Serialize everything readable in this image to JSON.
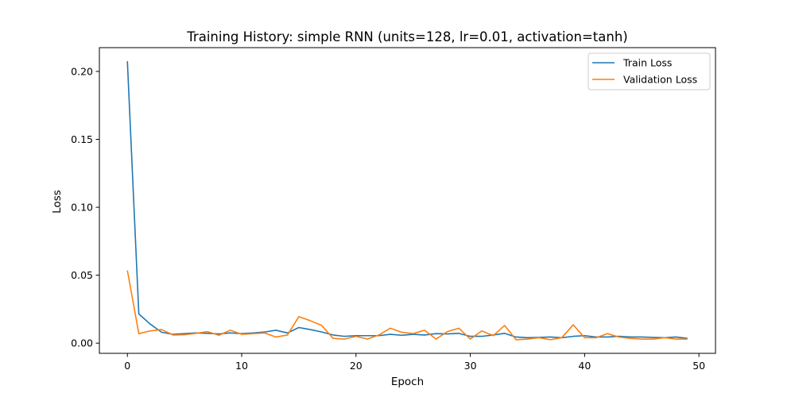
{
  "chart_data": {
    "type": "line",
    "title": "Training History: simple RNN (units=128, lr=0.01, activation=tanh)",
    "xlabel": "Epoch",
    "ylabel": "Loss",
    "xlim": [
      -2.45,
      51.45
    ],
    "ylim": [
      -0.0075,
      0.2175
    ],
    "xticks": [
      0,
      10,
      20,
      30,
      40,
      50
    ],
    "yticks": [
      0.0,
      0.05,
      0.1,
      0.15,
      0.2
    ],
    "xtick_labels": [
      "0",
      "10",
      "20",
      "30",
      "40",
      "50"
    ],
    "ytick_labels": [
      "0.00",
      "0.05",
      "0.10",
      "0.15",
      "0.20"
    ],
    "grid": false,
    "legend_position": "top-right",
    "x": [
      0,
      1,
      2,
      3,
      4,
      5,
      6,
      7,
      8,
      9,
      10,
      11,
      12,
      13,
      14,
      15,
      16,
      17,
      18,
      19,
      20,
      21,
      22,
      23,
      24,
      25,
      26,
      27,
      28,
      29,
      30,
      31,
      32,
      33,
      34,
      35,
      36,
      37,
      38,
      39,
      40,
      41,
      42,
      43,
      44,
      45,
      46,
      47,
      48,
      49
    ],
    "series": [
      {
        "name": "Train Loss",
        "color": "#1f77b4",
        "values": [
          0.2075,
          0.0215,
          0.014,
          0.008,
          0.0065,
          0.007,
          0.0075,
          0.0072,
          0.0068,
          0.0075,
          0.007,
          0.0075,
          0.0082,
          0.0095,
          0.0075,
          0.0115,
          0.01,
          0.0082,
          0.006,
          0.005,
          0.0055,
          0.0055,
          0.0055,
          0.0065,
          0.0058,
          0.0065,
          0.006,
          0.007,
          0.0068,
          0.0072,
          0.005,
          0.005,
          0.006,
          0.0072,
          0.0045,
          0.004,
          0.0042,
          0.0045,
          0.004,
          0.005,
          0.0055,
          0.0045,
          0.0045,
          0.005,
          0.0045,
          0.0045,
          0.0042,
          0.004,
          0.0045,
          0.0035
        ]
      },
      {
        "name": "Validation Loss",
        "color": "#ff7f0e",
        "values": [
          0.0535,
          0.007,
          0.009,
          0.01,
          0.006,
          0.0062,
          0.0072,
          0.0085,
          0.0058,
          0.0095,
          0.0065,
          0.007,
          0.0075,
          0.0045,
          0.006,
          0.0195,
          0.0165,
          0.013,
          0.0035,
          0.003,
          0.005,
          0.003,
          0.006,
          0.011,
          0.008,
          0.007,
          0.0095,
          0.003,
          0.0085,
          0.011,
          0.003,
          0.009,
          0.0055,
          0.013,
          0.0025,
          0.003,
          0.004,
          0.0025,
          0.004,
          0.0135,
          0.004,
          0.004,
          0.007,
          0.0045,
          0.0035,
          0.003,
          0.003,
          0.004,
          0.003,
          0.003
        ]
      }
    ]
  }
}
